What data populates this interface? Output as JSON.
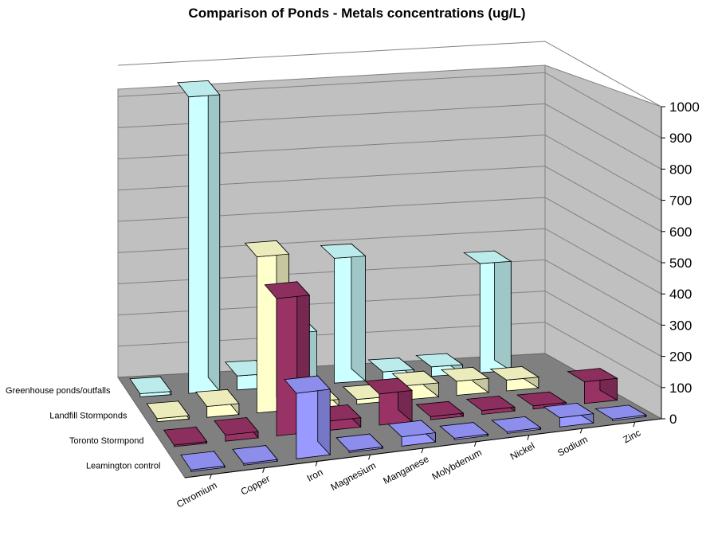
{
  "chart_data": {
    "type": "bar",
    "subtype": "3d-column",
    "title": "Comparison of Ponds - Metals concentrations (ug/L)",
    "categories": [
      "Chromium",
      "Copper",
      "Iron",
      "Magnesium",
      "Manganese",
      "Molybdenum",
      "Nickel",
      "Sodium",
      "Zinc"
    ],
    "series": [
      {
        "name": "Leamington control",
        "color": "#9999FF",
        "values": [
          2,
          3,
          210,
          2,
          30,
          3,
          3,
          30,
          5
        ]
      },
      {
        "name": "Toronto Stormpond",
        "color": "#993366",
        "values": [
          3,
          20,
          440,
          30,
          100,
          10,
          12,
          10,
          70
        ]
      },
      {
        "name": "Landfill Stormponds",
        "color": "#FFFFCC",
        "values": [
          10,
          35,
          500,
          20,
          15,
          45,
          45,
          35,
          null
        ]
      },
      {
        "name": "Greenhouse ponds/outfalls",
        "color": "#CCFFFF",
        "values": [
          10,
          950,
          45,
          170,
          400,
          25,
          30,
          350,
          null
        ]
      }
    ],
    "ylim": [
      0,
      1000
    ],
    "yticks": [
      0,
      100,
      200,
      300,
      400,
      500,
      600,
      700,
      800,
      900,
      1000
    ],
    "gridlines": true
  }
}
